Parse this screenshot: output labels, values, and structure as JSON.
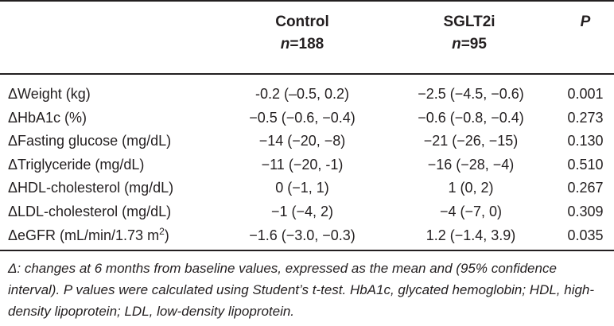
{
  "header": {
    "control_label": "Control",
    "control_n_prefix": "n",
    "control_n_value": "=188",
    "sglt2i_label": "SGLT2i",
    "sglt2i_n_prefix": "n",
    "sglt2i_n_value": "=95",
    "p_label": "P"
  },
  "rows": [
    {
      "label": "ΔWeight (kg)",
      "control": "-0.2 (–0.5, 0.2)",
      "sglt2i": "−2.5 (−4.5, −0.6)",
      "p": "0.001"
    },
    {
      "label": "ΔHbA1c (%)",
      "control": "−0.5 (−0.6, −0.4)",
      "sglt2i": "−0.6 (−0.8, −0.4)",
      "p": "0.273"
    },
    {
      "label": "ΔFasting glucose (mg/dL)",
      "control": "−14 (−20, −8)",
      "sglt2i": "−21 (−26, −15)",
      "p": "0.130"
    },
    {
      "label": "ΔTriglyceride (mg/dL)",
      "control": "−11 (−20, -1)",
      "sglt2i": "−16 (−28, −4)",
      "p": "0.510"
    },
    {
      "label": "ΔHDL-cholesterol (mg/dL)",
      "control": "0 (−1, 1)",
      "sglt2i": "1 (0, 2)",
      "p": "0.267"
    },
    {
      "label": "ΔLDL-cholesterol (mg/dL)",
      "control": "−1 (−4, 2)",
      "sglt2i": "−4 (−7, 0)",
      "p": "0.309"
    },
    {
      "label_main": "ΔeGFR (mL/min/1.73 m",
      "label_sup": "2",
      "label_end": ")",
      "control": "−1.6 (−3.0, −0.3)",
      "sglt2i": "1.2 (−1.4, 3.9)",
      "p": "0.035"
    }
  ],
  "footnote": {
    "text": "Δ: changes at 6 months from baseline values, expressed as the mean and (95% confidence interval). P values were calculated using Student’s t-test. HbA1c, glycated hemoglobin; HDL, high-density lipoprotein; LDL, low-density lipoprotein."
  }
}
